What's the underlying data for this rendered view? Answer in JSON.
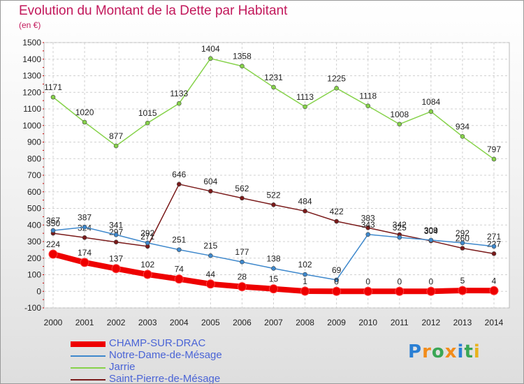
{
  "title": "Evolution du Montant de la Dette par Habitant",
  "unit_label": "(en €)",
  "logo": {
    "text": "Proxiti",
    "letters": [
      "P",
      "r",
      "o",
      "x",
      "i",
      "t",
      "i"
    ],
    "colors": [
      "#2a7fd4",
      "#f28c1a",
      "#3aa655",
      "#f28c1a",
      "#2a7fd4",
      "#3aa655",
      "#e8b21b"
    ]
  },
  "chart_data": {
    "type": "line",
    "title": "Evolution du Montant de la Dette par Habitant",
    "ylabel": "(en €)",
    "xlabel": "",
    "ylim": [
      -100,
      1500
    ],
    "yticks": [
      -100,
      0,
      100,
      200,
      300,
      400,
      500,
      600,
      700,
      800,
      900,
      1000,
      1100,
      1200,
      1300,
      1400,
      1500
    ],
    "grid": true,
    "legend_position": "bottom-left",
    "x": [
      "2000",
      "2001",
      "2002",
      "2003",
      "2004",
      "2005",
      "2006",
      "2007",
      "2008",
      "2009",
      "2010",
      "2011",
      "2012",
      "2013",
      "2014"
    ],
    "series": [
      {
        "name": "CHAMP-SUR-DRAC",
        "color": "#ee0000",
        "values": [
          224,
          174,
          137,
          102,
          74,
          44,
          28,
          15,
          1,
          0,
          0,
          0,
          0,
          5,
          4
        ]
      },
      {
        "name": "Notre-Dame-de-Mésage",
        "color": "#3e88cc",
        "values": [
          367,
          387,
          341,
          292,
          251,
          215,
          177,
          138,
          102,
          69,
          343,
          325,
          309,
          292,
          271
        ]
      },
      {
        "name": "Jarrie",
        "color": "#86d24a",
        "values": [
          1171,
          1020,
          877,
          1015,
          1133,
          1404,
          1358,
          1231,
          1113,
          1225,
          1118,
          1008,
          1084,
          934,
          797
        ]
      },
      {
        "name": "Saint-Pierre-de-Mésage",
        "color": "#7a1a1a",
        "values": [
          350,
          324,
          297,
          271,
          646,
          604,
          562,
          522,
          484,
          422,
          383,
          342,
          304,
          260,
          227
        ]
      }
    ]
  }
}
